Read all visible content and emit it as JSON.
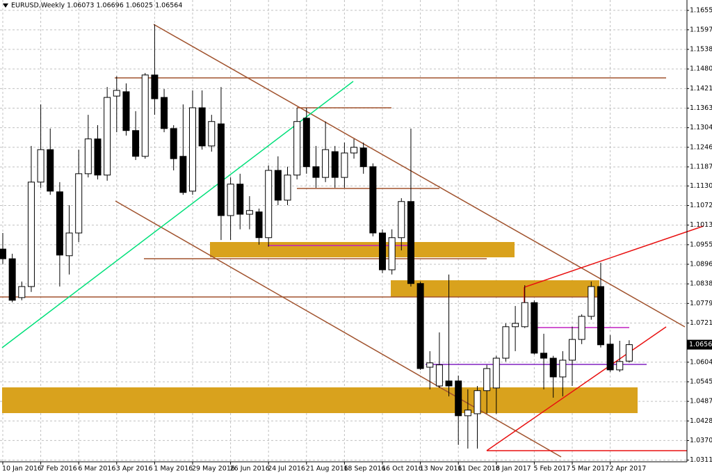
{
  "chart_data": {
    "type": "candlestick",
    "title": "EURUSD,Weekly  1.06073 1.06696 1.06025 1.06564",
    "categories": [
      "10 Jan 2016",
      null,
      null,
      null,
      "7 Feb 2016",
      null,
      null,
      null,
      "6 Mar 2016",
      null,
      null,
      null,
      "3 Apr 2016",
      null,
      null,
      null,
      "1 May 2016",
      null,
      null,
      null,
      "29 May 2016",
      null,
      null,
      null,
      "26 Jun 2016",
      null,
      null,
      null,
      "24 Jul 2016",
      null,
      null,
      null,
      "21 Aug 2016",
      null,
      null,
      null,
      "18 Sep 2016",
      null,
      null,
      null,
      "16 Oct 2016",
      null,
      null,
      null,
      "13 Nov 2016",
      null,
      null,
      null,
      "11 Dec 2016",
      null,
      null,
      null,
      "8 Jan 2017",
      null,
      null,
      null,
      "5 Feb 2017",
      null,
      null,
      null,
      "5 Mar 2017",
      null,
      null,
      null,
      "2 Apr 2017",
      null,
      null
    ],
    "open": [
      1.0942,
      1.0913,
      1.0797,
      1.083,
      1.1142,
      1.1239,
      1.1113,
      1.0922,
      1.099,
      1.1167,
      1.1271,
      1.1163,
      1.1399,
      1.1412,
      1.1296,
      1.1219,
      1.1462,
      1.1395,
      1.1302,
      1.1219,
      1.1115,
      1.1364,
      1.125,
      1.1316,
      1.1042,
      1.1136,
      1.1046,
      1.1053,
      1.0976,
      1.1177,
      1.1088,
      1.1163,
      1.1333,
      1.1188,
      1.1156,
      1.1233,
      1.1156,
      1.1229,
      1.1244,
      1.1188,
      1.099,
      1.088,
      1.0976,
      1.1084,
      1.0839,
      1.0589,
      1.0533,
      1.0548,
      1.0548,
      1.0444,
      1.045,
      1.0519,
      1.0527,
      1.0616,
      1.071,
      1.071,
      1.0782,
      1.0631,
      1.0616,
      1.056,
      1.061,
      1.0672,
      1.0741,
      1.083,
      1.0658,
      1.0581,
      1.06073
    ],
    "high": [
      1.099,
      1.0928,
      1.0845,
      1.125,
      1.1374,
      1.1302,
      1.1142,
      1.1073,
      1.1239,
      1.1343,
      1.1312,
      1.1426,
      1.1458,
      1.1437,
      1.1354,
      1.1468,
      1.1613,
      1.142,
      1.1312,
      1.1374,
      1.1416,
      1.1416,
      1.1343,
      1.1426,
      1.1156,
      1.1167,
      1.11,
      1.1063,
      1.1192,
      1.1219,
      1.1188,
      1.1364,
      1.1364,
      1.125,
      1.1323,
      1.125,
      1.126,
      1.1271,
      1.126,
      1.1198,
      1.1001,
      1.1001,
      1.1094,
      1.1302,
      1.0845,
      1.0637,
      1.0693,
      1.0866,
      1.0564,
      1.0523,
      1.0533,
      1.0596,
      1.0623,
      1.072,
      1.0772,
      1.0834,
      1.0789,
      1.0689,
      1.0623,
      1.0637,
      1.071,
      1.0747,
      1.0845,
      1.0901,
      1.0685,
      1.0668,
      1.06696
    ],
    "low": [
      1.0897,
      1.0783,
      1.0789,
      1.0814,
      1.1125,
      1.1104,
      1.083,
      1.0866,
      1.0963,
      1.1156,
      1.115,
      1.1146,
      1.1291,
      1.1281,
      1.1208,
      1.1212,
      1.1343,
      1.1291,
      1.1177,
      1.1104,
      1.1104,
      1.1239,
      1.1233,
      1.0969,
      1.0969,
      1.1001,
      1.1001,
      1.0955,
      1.0949,
      1.1073,
      1.1073,
      1.115,
      1.1167,
      1.1125,
      1.1142,
      1.1125,
      1.1125,
      1.1212,
      1.1167,
      1.098,
      1.087,
      1.0866,
      1.0938,
      1.083,
      1.0581,
      1.0523,
      1.0527,
      1.0502,
      1.0357,
      1.0346,
      1.0346,
      1.045,
      1.045,
      1.0606,
      1.0637,
      1.0706,
      1.0627,
      1.0523,
      1.0498,
      1.0502,
      1.0533,
      1.0658,
      1.0731,
      1.0648,
      1.0575,
      1.0575,
      1.06025
    ],
    "close": [
      1.0913,
      1.0789,
      1.083,
      1.1142,
      1.1239,
      1.1115,
      1.0924,
      1.099,
      1.1167,
      1.1271,
      1.1163,
      1.1395,
      1.1416,
      1.1296,
      1.1219,
      1.1462,
      1.1391,
      1.1302,
      1.1212,
      1.1111,
      1.1364,
      1.125,
      1.1323,
      1.1042,
      1.1136,
      1.1046,
      1.1057,
      1.0976,
      1.1177,
      1.1088,
      1.1163,
      1.1323,
      1.1188,
      1.1156,
      1.1239,
      1.1156,
      1.1229,
      1.1246,
      1.1188,
      1.099,
      1.088,
      1.0976,
      1.1084,
      1.0839,
      1.0585,
      1.0602,
      1.0596,
      1.0533,
      1.0444,
      1.0461,
      1.0519,
      1.0585,
      1.0616,
      1.071,
      1.072,
      1.0782,
      1.0631,
      1.0616,
      1.056,
      1.061,
      1.0672,
      1.0741,
      1.083,
      1.0656,
      1.0581,
      1.0606,
      1.06564
    ],
    "ylim": [
      1.03065,
      1.1686
    ],
    "yticks": [
      {
        "value": 1.1655,
        "label": "1.16550"
      },
      {
        "value": 1.1597,
        "label": "1.15970"
      },
      1.15385,
      {
        "value": 1.148,
        "label": "1.14800"
      },
      1.14215,
      {
        "value": 1.1363,
        "label": "1.13630"
      },
      1.13045,
      {
        "value": 1.1246,
        "label": "1.12460"
      },
      1.11875,
      1.11305,
      {
        "value": 1.1072,
        "label": "1.10720"
      },
      1.10135,
      {
        "value": 1.0955,
        "label": "1.09550"
      },
      1.08965,
      {
        "value": 1.0838,
        "label": "1.08380"
      },
      1.07795,
      {
        "value": 1.0721,
        "label": "1.07210"
      },
      {
        "value": 1.0604,
        "label": "1.06040"
      },
      1.05455,
      {
        "value": 1.0487,
        "label": "1.04870"
      },
      1.04285,
      {
        "value": 1.037,
        "label": "1.03700"
      },
      1.03115
    ],
    "grid": true,
    "up_color": "#ffffff",
    "down_color": "#000000",
    "outline_color": "#000000"
  }
}
